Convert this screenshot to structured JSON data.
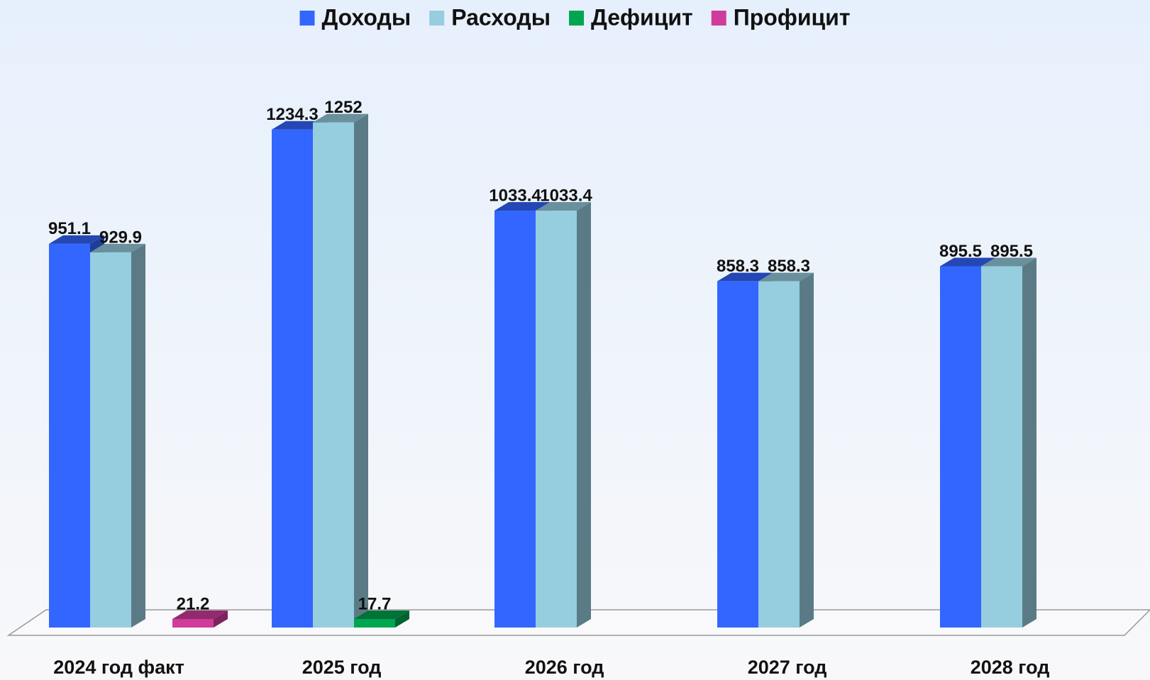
{
  "chart_data": {
    "type": "bar3d",
    "categories": [
      "2024 год факт",
      "2025 год",
      "2026 год",
      "2027 год",
      "2028 год"
    ],
    "series": [
      {
        "name": "Доходы",
        "color": "#3366ff",
        "values": [
          951.1,
          1234.3,
          1033.4,
          858.3,
          895.5
        ]
      },
      {
        "name": "Расходы",
        "color": "#96cddf",
        "values": [
          929.9,
          1252,
          1033.4,
          858.3,
          895.5
        ]
      },
      {
        "name": "Дефицит",
        "color": "#00a550",
        "values": [
          null,
          17.7,
          null,
          null,
          null
        ]
      },
      {
        "name": "Профицит",
        "color": "#d03c9c",
        "values": [
          21.2,
          null,
          null,
          null,
          null
        ]
      }
    ],
    "ylim": [
      0,
      1450
    ],
    "legend": "top"
  }
}
